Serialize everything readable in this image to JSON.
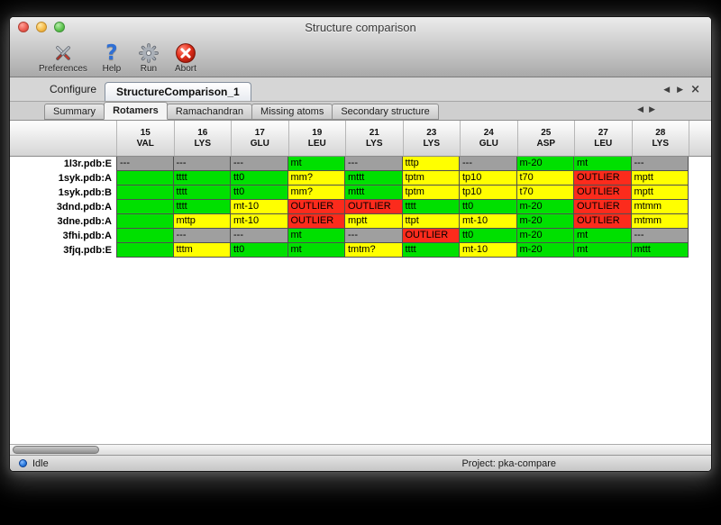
{
  "window": {
    "title": "Structure comparison"
  },
  "toolbar": {
    "buttons": [
      {
        "label": "Preferences"
      },
      {
        "label": "Help"
      },
      {
        "label": "Run"
      },
      {
        "label": "Abort"
      }
    ]
  },
  "configure": {
    "label": "Configure",
    "tab_name": "StructureComparison_1"
  },
  "tabs": [
    {
      "label": "Summary",
      "active": false
    },
    {
      "label": "Rotamers",
      "active": true
    },
    {
      "label": "Ramachandran",
      "active": false
    },
    {
      "label": "Missing atoms",
      "active": false
    },
    {
      "label": "Secondary structure",
      "active": false
    }
  ],
  "icons": {
    "left_arrow": "◀",
    "right_arrow": "▶",
    "close": "×",
    "help_glyph": "?"
  },
  "colors": {
    "green": "#00e000",
    "yellow": "#ffff00",
    "red": "#fc2b1c",
    "gray": "#9f9f9f"
  },
  "table": {
    "columns": [
      {
        "num": "15",
        "res": "VAL"
      },
      {
        "num": "16",
        "res": "LYS"
      },
      {
        "num": "17",
        "res": "GLU"
      },
      {
        "num": "19",
        "res": "LEU"
      },
      {
        "num": "21",
        "res": "LYS"
      },
      {
        "num": "23",
        "res": "LYS"
      },
      {
        "num": "24",
        "res": "GLU"
      },
      {
        "num": "25",
        "res": "ASP"
      },
      {
        "num": "27",
        "res": "LEU"
      },
      {
        "num": "28",
        "res": "LYS"
      }
    ],
    "rows": [
      {
        "name": "1l3r.pdb:E",
        "cells": [
          {
            "text": "---",
            "color": "gray"
          },
          {
            "text": "---",
            "color": "gray"
          },
          {
            "text": "---",
            "color": "gray"
          },
          {
            "text": "mt",
            "color": "green"
          },
          {
            "text": "---",
            "color": "gray"
          },
          {
            "text": "tttp",
            "color": "yellow"
          },
          {
            "text": "---",
            "color": "gray"
          },
          {
            "text": "m-20",
            "color": "green"
          },
          {
            "text": "mt",
            "color": "green"
          },
          {
            "text": "---",
            "color": "gray"
          }
        ]
      },
      {
        "name": "1syk.pdb:A",
        "cells": [
          {
            "text": "",
            "color": "green"
          },
          {
            "text": "tttt",
            "color": "green"
          },
          {
            "text": "tt0",
            "color": "green"
          },
          {
            "text": "mm?",
            "color": "yellow"
          },
          {
            "text": "mttt",
            "color": "green"
          },
          {
            "text": "tptm",
            "color": "yellow"
          },
          {
            "text": "tp10",
            "color": "yellow"
          },
          {
            "text": "t70",
            "color": "yellow"
          },
          {
            "text": "OUTLIER",
            "color": "red"
          },
          {
            "text": "mptt",
            "color": "yellow"
          }
        ]
      },
      {
        "name": "1syk.pdb:B",
        "cells": [
          {
            "text": "",
            "color": "green"
          },
          {
            "text": "tttt",
            "color": "green"
          },
          {
            "text": "tt0",
            "color": "green"
          },
          {
            "text": "mm?",
            "color": "yellow"
          },
          {
            "text": "mttt",
            "color": "green"
          },
          {
            "text": "tptm",
            "color": "yellow"
          },
          {
            "text": "tp10",
            "color": "yellow"
          },
          {
            "text": "t70",
            "color": "yellow"
          },
          {
            "text": "OUTLIER",
            "color": "red"
          },
          {
            "text": "mptt",
            "color": "yellow"
          }
        ]
      },
      {
        "name": "3dnd.pdb:A",
        "cells": [
          {
            "text": "",
            "color": "green"
          },
          {
            "text": "tttt",
            "color": "green"
          },
          {
            "text": "mt-10",
            "color": "yellow"
          },
          {
            "text": "OUTLIER",
            "color": "red"
          },
          {
            "text": "OUTLIER",
            "color": "red"
          },
          {
            "text": "tttt",
            "color": "green"
          },
          {
            "text": "tt0",
            "color": "green"
          },
          {
            "text": "m-20",
            "color": "green"
          },
          {
            "text": "OUTLIER",
            "color": "red"
          },
          {
            "text": "mtmm",
            "color": "yellow"
          }
        ]
      },
      {
        "name": "3dne.pdb:A",
        "cells": [
          {
            "text": "",
            "color": "green"
          },
          {
            "text": "mttp",
            "color": "yellow"
          },
          {
            "text": "mt-10",
            "color": "yellow"
          },
          {
            "text": "OUTLIER",
            "color": "red"
          },
          {
            "text": "mptt",
            "color": "yellow"
          },
          {
            "text": "ttpt",
            "color": "yellow"
          },
          {
            "text": "mt-10",
            "color": "yellow"
          },
          {
            "text": "m-20",
            "color": "green"
          },
          {
            "text": "OUTLIER",
            "color": "red"
          },
          {
            "text": "mtmm",
            "color": "yellow"
          }
        ]
      },
      {
        "name": "3fhi.pdb:A",
        "cells": [
          {
            "text": "",
            "color": "green"
          },
          {
            "text": "---",
            "color": "gray"
          },
          {
            "text": "---",
            "color": "gray"
          },
          {
            "text": "mt",
            "color": "green"
          },
          {
            "text": "---",
            "color": "gray"
          },
          {
            "text": "OUTLIER",
            "color": "red"
          },
          {
            "text": "tt0",
            "color": "green"
          },
          {
            "text": "m-20",
            "color": "green"
          },
          {
            "text": "mt",
            "color": "green"
          },
          {
            "text": "---",
            "color": "gray"
          }
        ]
      },
      {
        "name": "3fjq.pdb:E",
        "cells": [
          {
            "text": "",
            "color": "green"
          },
          {
            "text": "tttm",
            "color": "yellow"
          },
          {
            "text": "tt0",
            "color": "green"
          },
          {
            "text": "mt",
            "color": "green"
          },
          {
            "text": "tmtm?",
            "color": "yellow"
          },
          {
            "text": "tttt",
            "color": "green"
          },
          {
            "text": "mt-10",
            "color": "yellow"
          },
          {
            "text": "m-20",
            "color": "green"
          },
          {
            "text": "mt",
            "color": "green"
          },
          {
            "text": "mttt",
            "color": "green"
          }
        ]
      }
    ]
  },
  "statusbar": {
    "status": "Idle",
    "project": "Project: pka-compare"
  }
}
